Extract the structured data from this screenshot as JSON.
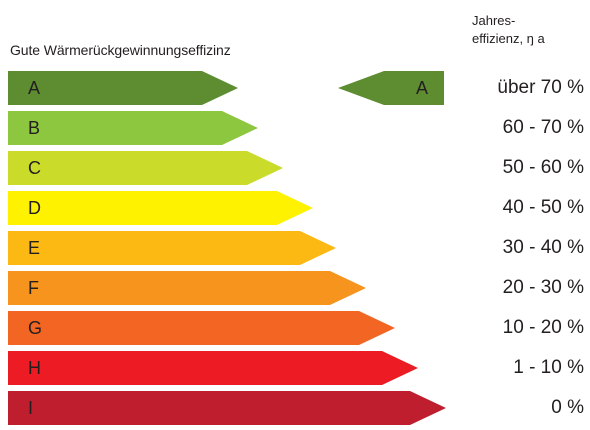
{
  "heading": "Gute Wärmerückgewinnungseffizinz",
  "column_header": {
    "line1": "Jahres-",
    "line2": "effizienz, ŋ a"
  },
  "classes": [
    {
      "letter": "A",
      "range": "über 70 %",
      "color": "#5e8c31"
    },
    {
      "letter": "B",
      "range": "60 - 70 %",
      "color": "#8dc63f"
    },
    {
      "letter": "C",
      "range": "50 - 60 %",
      "color": "#cbdb2a"
    },
    {
      "letter": "D",
      "range": "40 - 50 %",
      "color": "#fff200"
    },
    {
      "letter": "E",
      "range": "30 - 40 %",
      "color": "#fdb913"
    },
    {
      "letter": "F",
      "range": "20 - 30 %",
      "color": "#f7941d"
    },
    {
      "letter": "G",
      "range": "10 - 20 %",
      "color": "#f26522"
    },
    {
      "letter": "H",
      "range": "1 - 10 %",
      "color": "#ed1c24"
    },
    {
      "letter": "I",
      "range": "0 %",
      "color": "#be1e2d"
    }
  ],
  "rating": {
    "letter": "A",
    "color": "#5e8c31"
  }
}
